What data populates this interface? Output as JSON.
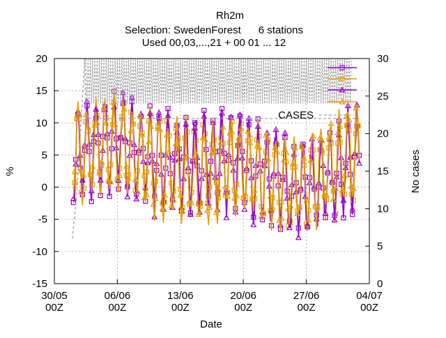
{
  "chart_data": {
    "type": "line",
    "title_lines": [
      "Rh2m",
      "Selection: SwedenForest      6 stations",
      "Used 00,03,...,21 + 00 01 ... 12"
    ],
    "xlabel": "Date",
    "ylabel": "%",
    "y2label": "No cases",
    "ylim": [
      -15,
      20
    ],
    "y2lim": [
      0,
      30
    ],
    "y_ticks": [
      -15,
      -10,
      -5,
      0,
      5,
      10,
      15,
      20
    ],
    "y2_ticks": [
      0,
      5,
      10,
      15,
      20,
      25,
      30
    ],
    "x_tick_labels": [
      [
        "30/05",
        "00Z"
      ],
      [
        "06/06",
        "00Z"
      ],
      [
        "13/06",
        "00Z"
      ],
      [
        "20/06",
        "00Z"
      ],
      [
        "27/06",
        "00Z"
      ],
      [
        "04/07",
        "00Z"
      ]
    ],
    "x_start": "2023-05-30T00:00",
    "x_end": "2023-07-04T00:00",
    "data_start": "2023-06-01T03:00",
    "data_end": "2023-07-02T21:00",
    "grid": true,
    "legend_position": "top-right",
    "series": [
      {
        "key": "s1",
        "color": "#9400d3",
        "marker": "open-square",
        "ymin": -12,
        "ymax": 19.5
      },
      {
        "key": "s2",
        "color": "#e69f00",
        "marker": "open-square",
        "ymin": -11,
        "ymax": 19.5
      },
      {
        "key": "s3",
        "color": "#9400d3",
        "marker": "open-triangle",
        "ymin": -8,
        "ymax": 19
      },
      {
        "key": "s4",
        "color": "#e69f00",
        "marker": "open-triangle",
        "ymin": -7,
        "ymax": 18.5
      },
      {
        "key": "cases",
        "name": "CASES",
        "color": "#a0a0a0",
        "dash": "dashed",
        "axis": "y2",
        "values": [
          6,
          12,
          30,
          22,
          22
        ]
      }
    ]
  }
}
